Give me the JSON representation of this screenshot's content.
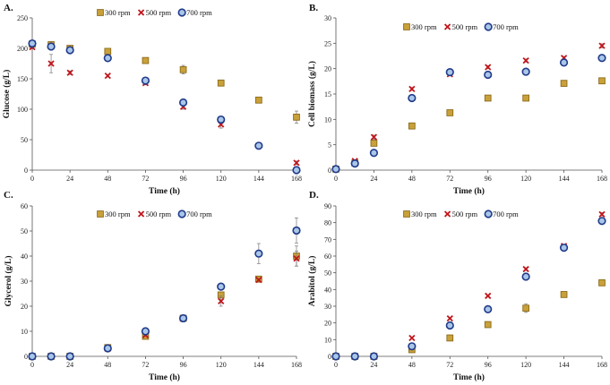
{
  "chart_data": [
    {
      "type": "scatter",
      "panel_label": "A.",
      "title": "",
      "xlabel": "Time (h)",
      "ylabel": "Glucose (g/L)",
      "xlim": [
        0,
        168
      ],
      "ylim": [
        0,
        250
      ],
      "xticks": [
        0,
        24,
        48,
        72,
        96,
        120,
        144,
        168
      ],
      "yticks": [
        0,
        50,
        100,
        150,
        200,
        250
      ],
      "legend": "top-center",
      "series": [
        {
          "name": "300 rpm",
          "marker": "square",
          "color": "#c9a13a",
          "edge": "#8c6a1a",
          "x": [
            0,
            12,
            24,
            48,
            72,
            96,
            120,
            144,
            168
          ],
          "y": [
            207,
            206,
            200,
            195,
            180,
            165,
            143,
            115,
            87
          ],
          "err": [
            3,
            3,
            3,
            3,
            3,
            7,
            3,
            4,
            10
          ]
        },
        {
          "name": "500 rpm",
          "marker": "x",
          "color": "#c0161c",
          "x": [
            0,
            12,
            24,
            48,
            72,
            96,
            120,
            144,
            168
          ],
          "y": [
            202,
            175,
            160,
            155,
            143,
            104,
            75,
            40,
            12
          ],
          "err": [
            3,
            15,
            3,
            2,
            3,
            4,
            6,
            3,
            3
          ]
        },
        {
          "name": "700 rpm",
          "marker": "circle",
          "color": "#a9c6e8",
          "edge": "#1f3a8a",
          "x": [
            0,
            12,
            24,
            48,
            72,
            96,
            120,
            144,
            168
          ],
          "y": [
            208,
            203,
            197,
            184,
            147,
            111,
            83,
            40,
            0
          ],
          "err": [
            4,
            3,
            3,
            3,
            3,
            3,
            4,
            3,
            1
          ]
        }
      ]
    },
    {
      "type": "scatter",
      "panel_label": "B.",
      "title": "",
      "xlabel": "Time (h)",
      "ylabel": "Cell biomass (g/L)",
      "xlim": [
        0,
        168
      ],
      "ylim": [
        0,
        30
      ],
      "xticks": [
        0,
        24,
        48,
        72,
        96,
        120,
        144,
        168
      ],
      "yticks": [
        0,
        5,
        10,
        15,
        20,
        25,
        30
      ],
      "legend": "top-center",
      "series": [
        {
          "name": "300 rpm",
          "marker": "square",
          "color": "#c9a13a",
          "edge": "#8c6a1a",
          "x": [
            0,
            12,
            24,
            48,
            72,
            96,
            120,
            144,
            168
          ],
          "y": [
            0.2,
            1.4,
            5.3,
            8.7,
            11.3,
            14.2,
            14.2,
            17.1,
            17.6
          ],
          "err": [
            0.1,
            0.2,
            0.5,
            0.3,
            0.3,
            0.3,
            0.3,
            0.3,
            0.5
          ]
        },
        {
          "name": "500 rpm",
          "marker": "x",
          "color": "#c0161c",
          "x": [
            0,
            12,
            24,
            48,
            72,
            96,
            120,
            144,
            168
          ],
          "y": [
            0.2,
            1.8,
            6.5,
            16.0,
            18.9,
            20.3,
            21.6,
            22.1,
            24.5
          ],
          "err": [
            0.1,
            0.2,
            0.4,
            0.3,
            0.3,
            0.3,
            0.3,
            0.3,
            0.4
          ]
        },
        {
          "name": "700 rpm",
          "marker": "circle",
          "color": "#a9c6e8",
          "edge": "#1f3a8a",
          "x": [
            0,
            12,
            24,
            48,
            72,
            96,
            120,
            144,
            168
          ],
          "y": [
            0.2,
            1.3,
            3.4,
            14.2,
            19.3,
            18.8,
            19.4,
            21.2,
            22.1
          ],
          "err": [
            0.1,
            0.2,
            0.3,
            0.4,
            0.3,
            0.3,
            0.3,
            0.3,
            0.3
          ]
        }
      ]
    },
    {
      "type": "scatter",
      "panel_label": "C.",
      "title": "",
      "xlabel": "Time (h)",
      "ylabel": "Glycerol (g/L)",
      "xlim": [
        0,
        168
      ],
      "ylim": [
        0,
        60
      ],
      "xticks": [
        0,
        24,
        48,
        72,
        96,
        120,
        144,
        168
      ],
      "yticks": [
        0,
        10,
        20,
        30,
        40,
        50,
        60
      ],
      "legend": "top-center",
      "series": [
        {
          "name": "300 rpm",
          "marker": "square",
          "color": "#c9a13a",
          "edge": "#8c6a1a",
          "x": [
            0,
            12,
            24,
            48,
            72,
            96,
            120,
            144,
            168
          ],
          "y": [
            0,
            0,
            0,
            3.5,
            8.0,
            15.2,
            24.5,
            30.8,
            40.0
          ],
          "err": [
            0.2,
            0.2,
            0.2,
            0.3,
            0.4,
            0.4,
            1.0,
            0.5,
            4.0
          ]
        },
        {
          "name": "500 rpm",
          "marker": "x",
          "color": "#c0161c",
          "x": [
            0,
            12,
            24,
            48,
            72,
            96,
            120,
            144,
            168
          ],
          "y": [
            0,
            0,
            0,
            3.0,
            8.5,
            15.0,
            22.0,
            30.5,
            39.0
          ],
          "err": [
            0.2,
            0.2,
            0.2,
            0.3,
            0.4,
            0.4,
            2.0,
            0.5,
            3.0
          ]
        },
        {
          "name": "700 rpm",
          "marker": "circle",
          "color": "#a9c6e8",
          "edge": "#1f3a8a",
          "x": [
            0,
            12,
            24,
            48,
            72,
            96,
            120,
            144,
            168
          ],
          "y": [
            0,
            0,
            0,
            3.2,
            10.0,
            15.2,
            27.8,
            41.0,
            50.2
          ],
          "err": [
            0.2,
            0.2,
            0.2,
            0.3,
            0.4,
            0.4,
            0.6,
            4.0,
            5.0
          ]
        }
      ]
    },
    {
      "type": "scatter",
      "panel_label": "D.",
      "title": "",
      "xlabel": "Time (h)",
      "ylabel": "Arabitol (g/L)",
      "xlim": [
        0,
        168
      ],
      "ylim": [
        0,
        90
      ],
      "xticks": [
        0,
        24,
        48,
        72,
        96,
        120,
        144,
        168
      ],
      "yticks": [
        0,
        10,
        20,
        30,
        40,
        50,
        60,
        70,
        80,
        90
      ],
      "legend": "top-center",
      "series": [
        {
          "name": "300 rpm",
          "marker": "square",
          "color": "#c9a13a",
          "edge": "#8c6a1a",
          "x": [
            0,
            12,
            24,
            48,
            72,
            96,
            120,
            144,
            168
          ],
          "y": [
            0,
            0,
            0,
            4.0,
            11.0,
            19.0,
            28.8,
            37.0,
            44.0
          ],
          "err": [
            0.3,
            0.3,
            0.3,
            0.5,
            0.5,
            0.5,
            2.5,
            0.8,
            1.0
          ]
        },
        {
          "name": "500 rpm",
          "marker": "x",
          "color": "#c0161c",
          "x": [
            0,
            12,
            24,
            48,
            72,
            96,
            120,
            144,
            168
          ],
          "y": [
            0,
            0,
            0,
            11.0,
            22.7,
            36.2,
            52.2,
            66.0,
            85.0
          ],
          "err": [
            0.3,
            0.3,
            0.3,
            0.5,
            0.5,
            0.5,
            0.8,
            1.0,
            1.0
          ]
        },
        {
          "name": "700 rpm",
          "marker": "circle",
          "color": "#a9c6e8",
          "edge": "#1f3a8a",
          "x": [
            0,
            12,
            24,
            48,
            72,
            96,
            120,
            144,
            168
          ],
          "y": [
            0,
            0,
            0,
            6.0,
            18.5,
            28.2,
            47.7,
            65.0,
            81.0
          ],
          "err": [
            0.3,
            0.3,
            0.3,
            0.5,
            0.5,
            0.5,
            0.8,
            2.0,
            1.5
          ]
        }
      ]
    }
  ]
}
